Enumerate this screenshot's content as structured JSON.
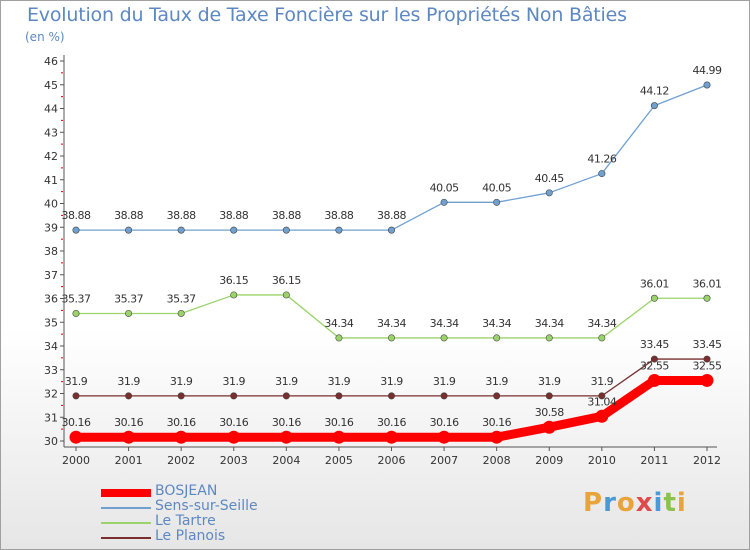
{
  "chart_data": {
    "type": "line",
    "title": "Evolution du Taux de Taxe Foncière sur les Propriétés Non Bâties",
    "ylabel": "(en %)",
    "xlabel": "",
    "categories": [
      "2000",
      "2001",
      "2002",
      "2003",
      "2004",
      "2005",
      "2006",
      "2007",
      "2008",
      "2009",
      "2010",
      "2011",
      "2012"
    ],
    "ylim": [
      30,
      46
    ],
    "yticks": [
      30,
      31,
      32,
      33,
      34,
      35,
      36,
      37,
      38,
      39,
      40,
      41,
      42,
      43,
      44,
      45,
      46
    ],
    "series": [
      {
        "name": "BOSJEAN",
        "color": "#ff0000",
        "values": [
          30.16,
          30.16,
          30.16,
          30.16,
          30.16,
          30.16,
          30.16,
          30.16,
          30.16,
          30.58,
          31.04,
          32.55,
          32.55
        ],
        "labels": [
          "30.16",
          "30.16",
          "30.16",
          "30.16",
          "30.16",
          "30.16",
          "30.16",
          "30.16",
          "30.16",
          "30.58",
          "31.04",
          "32.55",
          "32.55"
        ]
      },
      {
        "name": "Sens-sur-Seille",
        "color": "#6fa0d0",
        "values": [
          38.88,
          38.88,
          38.88,
          38.88,
          38.88,
          38.88,
          38.88,
          40.05,
          40.05,
          40.45,
          41.26,
          44.12,
          44.99
        ],
        "labels": [
          "38.88",
          "38.88",
          "38.88",
          "38.88",
          "38.88",
          "38.88",
          "38.88",
          "40.05",
          "40.05",
          "40.45",
          "41.26",
          "44.12",
          "44.99"
        ]
      },
      {
        "name": "Le Tartre",
        "color": "#9ad36a",
        "values": [
          35.37,
          35.37,
          35.37,
          36.15,
          36.15,
          34.34,
          34.34,
          34.34,
          34.34,
          34.34,
          34.34,
          36.01,
          36.01
        ],
        "labels": [
          "35.37",
          "35.37",
          "35.37",
          "36.15",
          "36.15",
          "34.34",
          "34.34",
          "34.34",
          "34.34",
          "34.34",
          "34.34",
          "36.01",
          "36.01"
        ]
      },
      {
        "name": "Le Planois",
        "color": "#7a2e2e",
        "values": [
          31.9,
          31.9,
          31.9,
          31.9,
          31.9,
          31.9,
          31.9,
          31.9,
          31.9,
          31.9,
          31.9,
          33.45,
          33.45
        ],
        "labels": [
          "31.9",
          "31.9",
          "31.9",
          "31.9",
          "31.9",
          "31.9",
          "31.9",
          "31.9",
          "31.9",
          "31.9",
          "31.9",
          "33.45",
          "33.45"
        ]
      }
    ],
    "legend_position": "bottom-left",
    "grid": false
  },
  "logo": {
    "text": "Proxiti"
  }
}
